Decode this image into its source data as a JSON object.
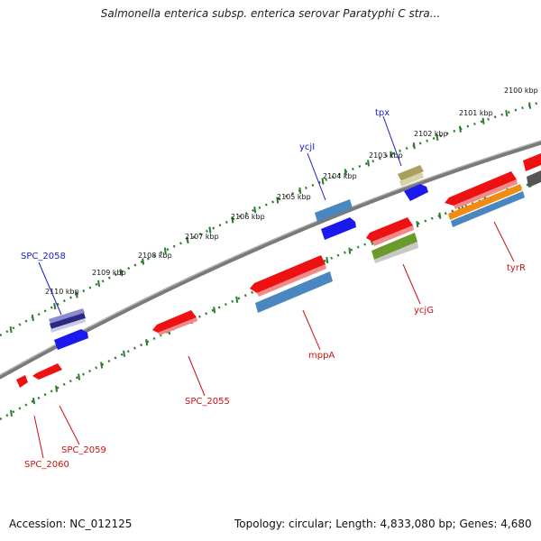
{
  "title": "Salmonella enterica subsp. enterica serovar Paratyphi C stra...",
  "footer": {
    "accession": "Accession: NC_012125",
    "stats": "Topology: circular; Length: 4,833,080 bp; Genes: 4,680"
  },
  "colors": {
    "backbone": "#7a7a7a",
    "tick": "#2e7d2e",
    "forward_label": "#1a1acc",
    "reverse_label": "#cc1111",
    "red_gene": "#ee1111",
    "blue_gene": "#1a1aee",
    "steel_gene": "#4a86c0",
    "olive_gene": "#a8a060",
    "green_gene": "#6a9a2a",
    "orange_gene": "#f08c10",
    "grey_gene": "#555555",
    "navy_gene": "#5a5aaa"
  },
  "kbp_labels": [
    "2100 kbp",
    "2101 kbp",
    "2102 kbp",
    "2103 kbp",
    "2104 kbp",
    "2105 kbp",
    "2106 kbp",
    "2107 kbp",
    "2108 kbp",
    "2109 kbp",
    "2110 kbp"
  ],
  "forward_labels": [
    "tpx",
    "ycjI",
    "SPC_2058"
  ],
  "reverse_labels": [
    "tyrR",
    "ycjG",
    "mppA",
    "SPC_2055",
    "SPC_2059",
    "SPC_2060"
  ]
}
